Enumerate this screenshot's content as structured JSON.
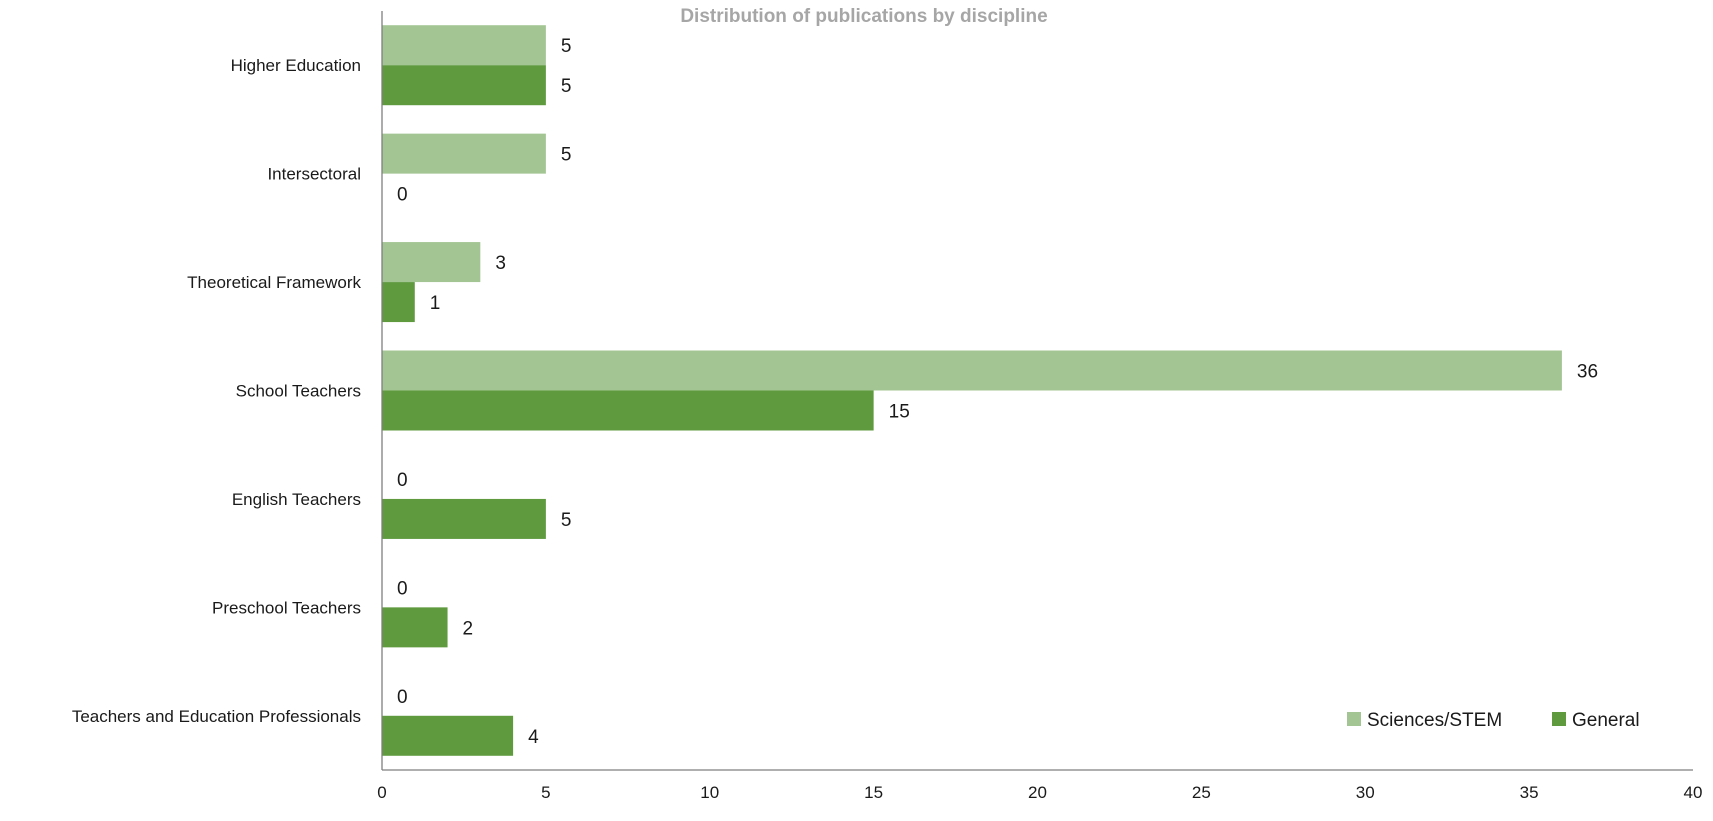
{
  "chart_data": {
    "type": "bar",
    "orientation": "horizontal",
    "title": "Distribution of publications by discipline",
    "xlabel": "",
    "ylabel": "",
    "categories": [
      "Higher Education",
      "Intersectoral",
      "Theoretical Framework",
      "School Teachers",
      "English Teachers",
      "Preschool Teachers",
      "Teachers and Education Professionals"
    ],
    "series": [
      {
        "name": "Sciences/STEM",
        "color": "#a3c593",
        "values": [
          5,
          5,
          3,
          36,
          0,
          0,
          0
        ]
      },
      {
        "name": "General",
        "color": "#5f9a3f",
        "values": [
          5,
          0,
          1,
          15,
          5,
          2,
          4
        ]
      }
    ],
    "xlim": [
      0,
      40
    ],
    "xticks": [
      0,
      5,
      10,
      15,
      20,
      25,
      30,
      35,
      40
    ],
    "grid": false,
    "legend_position": "bottom-right",
    "data_labels": true
  }
}
